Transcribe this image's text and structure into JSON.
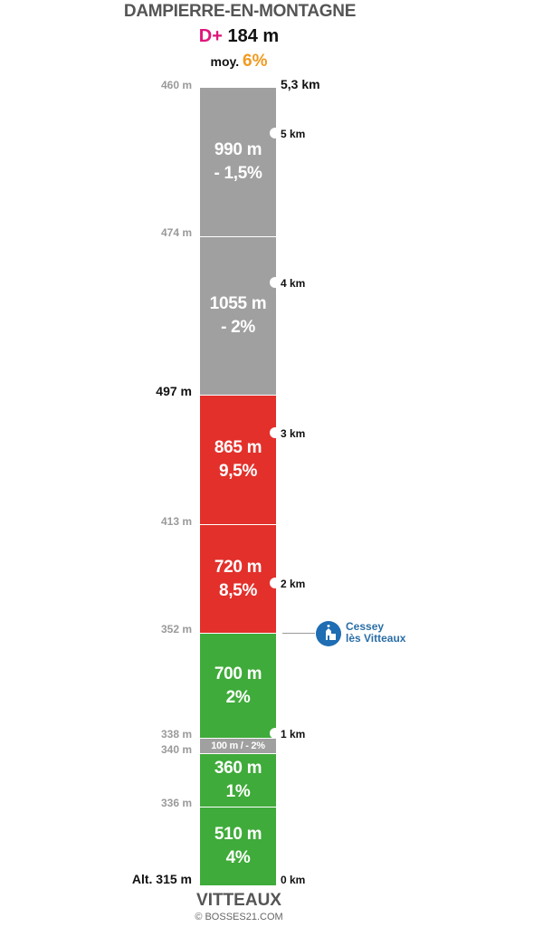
{
  "header": {
    "title": "DAMPIERRE-EN-MONTAGNE",
    "dplus_label": "D+",
    "dplus_value": "184 m",
    "avg_label": "moy.",
    "avg_value": "6%"
  },
  "footer": {
    "title": "VITTEAUX",
    "credit": "© BOSSES21.COM"
  },
  "colors": {
    "grey": "#a0a0a0",
    "red": "#e3302b",
    "green": "#3fab3a",
    "village_blue": "#1f6db3",
    "dplus": "#e0157a",
    "avg": "#f29a1f"
  },
  "segments": [
    {
      "length": "990 m",
      "grade": "- 1,5%",
      "color": "grey"
    },
    {
      "length": "1055 m",
      "grade": "- 2%",
      "color": "grey"
    },
    {
      "length": "865 m",
      "grade": "9,5%",
      "color": "red"
    },
    {
      "length": "720 m",
      "grade": "8,5%",
      "color": "red"
    },
    {
      "length": "700 m",
      "grade": "2%",
      "color": "green"
    },
    {
      "length": "100 m / - 2%",
      "grade": "",
      "color": "grey"
    },
    {
      "length": "360 m",
      "grade": "1%",
      "color": "green"
    },
    {
      "length": "510 m",
      "grade": "4%",
      "color": "green"
    }
  ],
  "altitudes": [
    "460 m",
    "474 m",
    "497 m",
    "413 m",
    "352 m",
    "338 m",
    "340 m",
    "336 m",
    "Alt. 315 m"
  ],
  "km_marks": [
    "5,3 km",
    "5 km",
    "4 km",
    "3 km",
    "2 km",
    "1 km",
    "0 km"
  ],
  "village": {
    "line1": "Cessey",
    "line2": "lès Vitteaux",
    "icon": "church-icon"
  }
}
